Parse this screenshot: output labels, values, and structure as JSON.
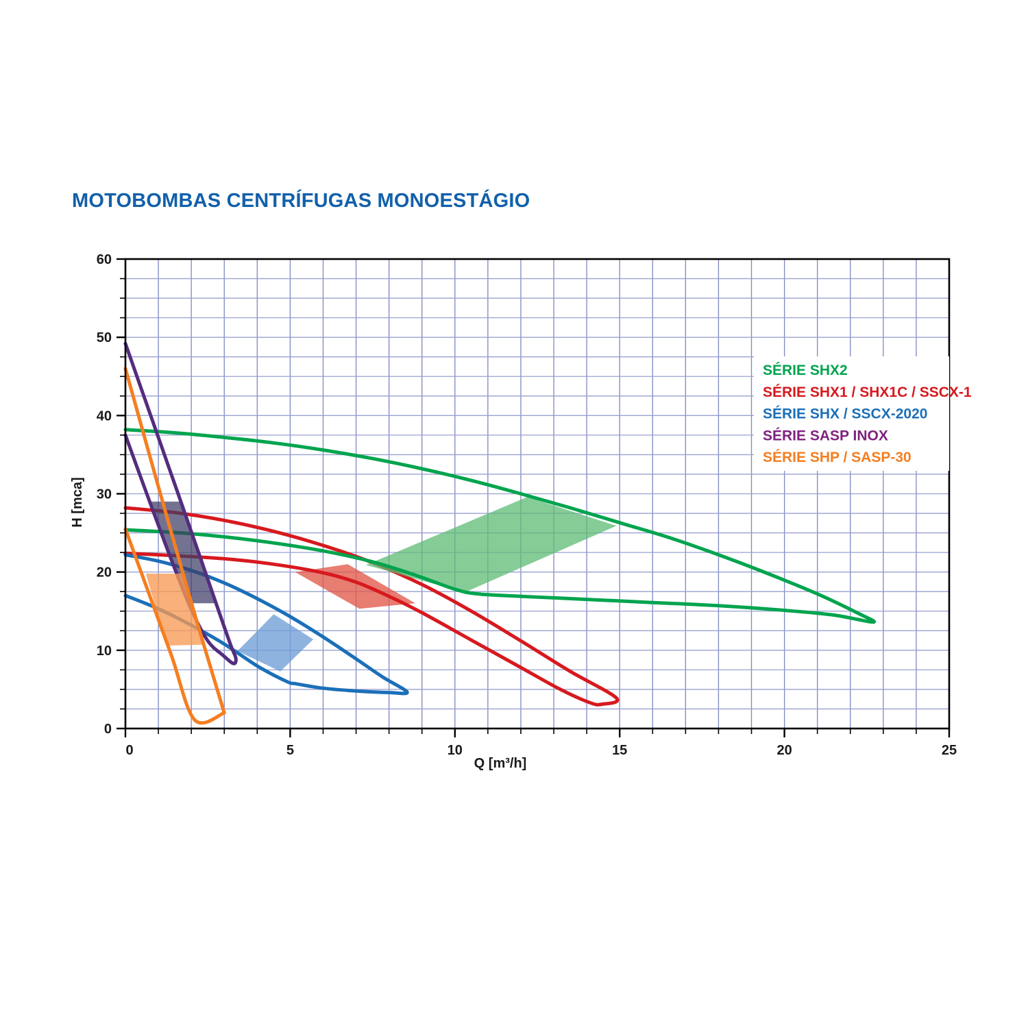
{
  "page": {
    "title": "MOTOBOMBAS CENTRÍFUGAS MONOESTÁGIO",
    "title_color": "#1260aa",
    "background": "#ffffff"
  },
  "chart_data": {
    "type": "line",
    "title": "MOTOBOMBAS CENTRÍFUGAS MONOESTÁGIO",
    "xlabel": "Q [m³/h]",
    "ylabel": "H [mca]",
    "xlim": [
      0,
      25
    ],
    "ylim": [
      0,
      60
    ],
    "x_major_ticks": [
      0,
      5,
      10,
      15,
      20,
      25
    ],
    "x_minor_step": 1,
    "y_major_ticks": [
      0,
      10,
      20,
      30,
      40,
      50,
      60
    ],
    "y_minor_step": 2.5,
    "grid": {
      "on": true,
      "vertical_step": 1,
      "horizontal_step": 2.5,
      "vertical_color": "#7d86c3",
      "horizontal_color": "#99a1cf"
    },
    "axis_color": "#000000",
    "legend": {
      "position": "top-right",
      "background": "#ffffff"
    },
    "series": [
      {
        "id": "shx2",
        "name": "SÉRIE SHX2",
        "color": "#00a44e",
        "legend_color": "#00a44e",
        "curves": {
          "upper": [
            [
              0,
              38.2
            ],
            [
              1.5,
              37.8
            ],
            [
              3,
              37.2
            ],
            [
              4.5,
              36.5
            ],
            [
              6,
              35.6
            ],
            [
              7.5,
              34.5
            ],
            [
              9,
              33.2
            ],
            [
              10.5,
              31.7
            ],
            [
              12,
              30.0
            ],
            [
              13.5,
              28.2
            ],
            [
              15,
              26.3
            ],
            [
              16.5,
              24.4
            ],
            [
              18,
              22.2
            ],
            [
              19.5,
              19.8
            ],
            [
              21,
              17.2
            ],
            [
              22.2,
              14.8
            ],
            [
              22.7,
              13.6
            ]
          ],
          "lower": [
            [
              0,
              25.4
            ],
            [
              2,
              24.9
            ],
            [
              4,
              24.0
            ],
            [
              6,
              22.7
            ],
            [
              7.5,
              21.3
            ],
            [
              8.8,
              19.6
            ],
            [
              10,
              17.8
            ],
            [
              10.7,
              17.2
            ],
            [
              12,
              16.9
            ],
            [
              14,
              16.5
            ],
            [
              16,
              16.1
            ],
            [
              18,
              15.7
            ],
            [
              20,
              15.1
            ],
            [
              21.5,
              14.5
            ],
            [
              22.7,
              13.6
            ]
          ]
        },
        "operating_region": {
          "fill": "#5cbb74",
          "opacity": 0.75,
          "points": [
            [
              7.3,
              20.9
            ],
            [
              12.2,
              29.6
            ],
            [
              14.9,
              25.9
            ],
            [
              10.3,
              17.4
            ]
          ]
        }
      },
      {
        "id": "shx1",
        "name": "SÉRIE SHX1 / SHX1C / SSCX-1",
        "color": "#d7191e",
        "legend_color": "#d7191e",
        "curves": {
          "upper": [
            [
              0,
              28.2
            ],
            [
              1.5,
              27.6
            ],
            [
              3,
              26.6
            ],
            [
              4.5,
              25.2
            ],
            [
              6,
              23.4
            ],
            [
              7.5,
              21.2
            ],
            [
              9,
              18.4
            ],
            [
              10.5,
              15.0
            ],
            [
              12,
              11.2
            ],
            [
              13.5,
              7.3
            ],
            [
              14.9,
              3.9
            ]
          ],
          "lower": [
            [
              0,
              22.4
            ],
            [
              1.5,
              22.1
            ],
            [
              3,
              21.7
            ],
            [
              4.5,
              21.0
            ],
            [
              6,
              19.9
            ],
            [
              7,
              18.7
            ],
            [
              8,
              16.9
            ],
            [
              9,
              14.8
            ],
            [
              10.5,
              11.3
            ],
            [
              12,
              7.8
            ],
            [
              13.2,
              5.0
            ],
            [
              14.1,
              3.3
            ],
            [
              14.45,
              3.1
            ],
            [
              14.9,
              3.9
            ]
          ]
        },
        "operating_region": {
          "fill": "#e2584a",
          "opacity": 0.78,
          "points": [
            [
              5.15,
              20.0
            ],
            [
              6.75,
              21.0
            ],
            [
              8.8,
              16.0
            ],
            [
              7.1,
              15.3
            ]
          ]
        }
      },
      {
        "id": "shx",
        "name": "SÉRIE SHX / SSCX-2020",
        "color": "#1b6fb8",
        "legend_color": "#1b6fb8",
        "curves": {
          "upper": [
            [
              0,
              22.2
            ],
            [
              1,
              21.4
            ],
            [
              2,
              20.2
            ],
            [
              3,
              18.6
            ],
            [
              4,
              16.6
            ],
            [
              5,
              14.3
            ],
            [
              6,
              11.7
            ],
            [
              7,
              8.9
            ],
            [
              7.8,
              6.6
            ],
            [
              8.55,
              4.65
            ]
          ],
          "lower": [
            [
              0,
              17.0
            ],
            [
              1,
              15.3
            ],
            [
              2,
              13.2
            ],
            [
              3,
              10.8
            ],
            [
              4,
              8.0
            ],
            [
              4.9,
              6.0
            ],
            [
              5.2,
              5.7
            ],
            [
              6,
              5.15
            ],
            [
              7,
              4.8
            ],
            [
              8,
              4.6
            ],
            [
              8.55,
              4.65
            ]
          ]
        },
        "operating_region": {
          "fill": "#6f9ed6",
          "opacity": 0.78,
          "points": [
            [
              3.4,
              9.9
            ],
            [
              4.5,
              14.6
            ],
            [
              5.7,
              11.4
            ],
            [
              4.7,
              7.3
            ]
          ]
        }
      },
      {
        "id": "sasp",
        "name": "SÉRIE SASP INOX",
        "color": "#542d7e",
        "legend_color": "#7f2280",
        "curves": {
          "upper": [
            [
              0,
              49.2
            ],
            [
              0.8,
              39.6
            ],
            [
              1.6,
              30.0
            ],
            [
              2.3,
              21.5
            ],
            [
              2.85,
              14.8
            ],
            [
              3.2,
              10.6
            ],
            [
              3.35,
              9.0
            ],
            [
              3.28,
              8.3
            ]
          ],
          "lower": [
            [
              0,
              37.5
            ],
            [
              0.7,
              29.4
            ],
            [
              1.4,
              21.5
            ],
            [
              2.0,
              15.2
            ],
            [
              2.5,
              11.2
            ],
            [
              2.95,
              9.4
            ],
            [
              3.28,
              8.3
            ]
          ]
        },
        "operating_region": {
          "fill": "#3d3d66",
          "opacity": 0.72,
          "points": [
            [
              0.74,
              29.0
            ],
            [
              1.68,
              29.0
            ],
            [
              2.75,
              16.0
            ],
            [
              1.92,
              16.0
            ]
          ]
        }
      },
      {
        "id": "shp",
        "name": "SÉRIE SHP / SASP-30",
        "color": "#f57e20",
        "legend_color": "#f57e20",
        "curves": {
          "upper": [
            [
              0,
              46.0
            ],
            [
              1,
              30.9
            ],
            [
              2,
              16.1
            ],
            [
              2.55,
              8.3
            ],
            [
              3.0,
              2.0
            ]
          ],
          "lower": [
            [
              0,
              25.5
            ],
            [
              0.7,
              17.4
            ],
            [
              1.4,
              9.3
            ],
            [
              2.1,
              1.1
            ],
            [
              3.0,
              2.0
            ]
          ]
        },
        "operating_region": {
          "fill": "#f79a55",
          "opacity": 0.78,
          "points": [
            [
              0.62,
              19.8
            ],
            [
              1.78,
              19.8
            ],
            [
              2.33,
              10.7
            ],
            [
              1.25,
              10.6
            ]
          ]
        }
      }
    ]
  }
}
